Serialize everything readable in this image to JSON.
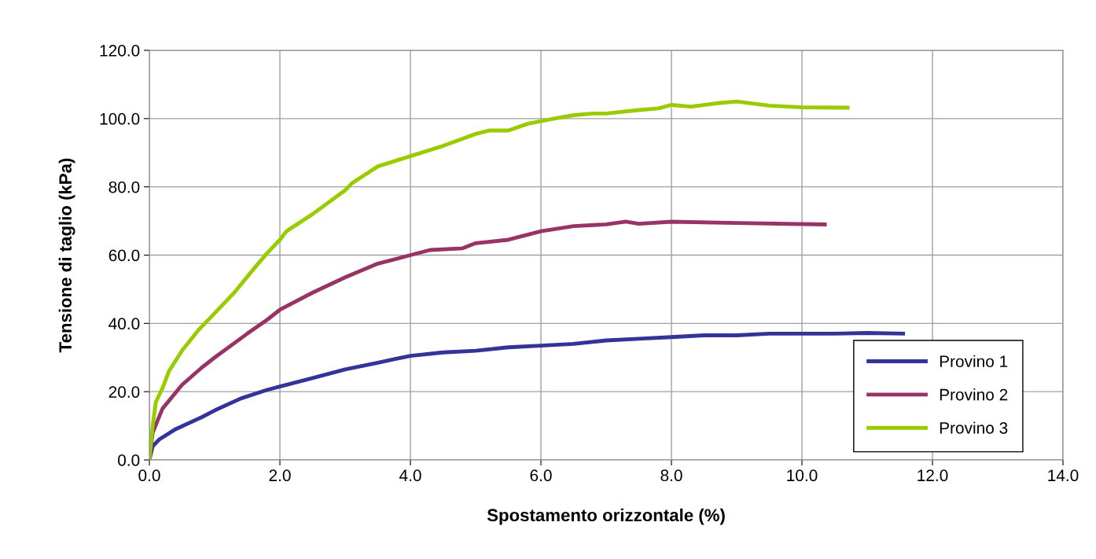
{
  "chart_data": {
    "type": "line",
    "xlabel": "Spostamento orizzontale (%)",
    "ylabel": "Tensione di taglio (kPa)",
    "xlim": [
      0,
      14
    ],
    "ylim": [
      0,
      120
    ],
    "xticks": [
      {
        "value": 0,
        "label": "0.0"
      },
      {
        "value": 2,
        "label": "2.0"
      },
      {
        "value": 4,
        "label": "4.0"
      },
      {
        "value": 6,
        "label": "6.0"
      },
      {
        "value": 8,
        "label": "8.0"
      },
      {
        "value": 10,
        "label": "10.0"
      },
      {
        "value": 12,
        "label": "12.0"
      },
      {
        "value": 14,
        "label": "14.0"
      }
    ],
    "yticks": [
      {
        "value": 0,
        "label": "0.0"
      },
      {
        "value": 20,
        "label": "20.0"
      },
      {
        "value": 40,
        "label": "40.0"
      },
      {
        "value": 60,
        "label": "60.0"
      },
      {
        "value": 80,
        "label": "80.0"
      },
      {
        "value": 100,
        "label": "100.0"
      },
      {
        "value": 120,
        "label": "120.0"
      }
    ],
    "grid": true,
    "legend": "bottom right",
    "marker": "none",
    "line_style": "solid",
    "series": [
      {
        "name": "Provino 1",
        "color": "#333399",
        "x": [
          0,
          0.05,
          0.15,
          0.4,
          0.8,
          1.0,
          1.4,
          1.8,
          2.0,
          2.5,
          3.0,
          3.5,
          4.0,
          4.5,
          5.0,
          5.5,
          6.0,
          6.5,
          7.0,
          7.5,
          8.0,
          8.5,
          9.0,
          9.5,
          10.0,
          10.5,
          11.0,
          11.55
        ],
        "values": [
          0,
          4,
          6,
          9,
          12.5,
          14.5,
          18,
          20.5,
          21.5,
          24,
          26.5,
          28.5,
          30.5,
          31.5,
          32,
          33,
          33.5,
          34,
          35,
          35.5,
          36,
          36.5,
          36.5,
          37,
          37,
          37,
          37.2,
          37
        ]
      },
      {
        "name": "Provino 2",
        "color": "#993366",
        "x": [
          0,
          0.05,
          0.2,
          0.5,
          0.8,
          1.0,
          1.5,
          1.8,
          2.0,
          2.5,
          3.0,
          3.5,
          4.0,
          4.3,
          4.8,
          5.0,
          5.5,
          6.0,
          6.5,
          7.0,
          7.3,
          7.5,
          8.0,
          9.0,
          10.0,
          10.35
        ],
        "values": [
          0,
          8,
          15,
          22,
          27,
          30,
          37,
          41,
          44,
          49,
          53.5,
          57.5,
          60,
          61.5,
          62,
          63.5,
          64.5,
          67,
          68.5,
          69,
          69.8,
          69.2,
          69.8,
          69.4,
          69.1,
          69
        ]
      },
      {
        "name": "Provino 3",
        "color": "#99cc00",
        "x": [
          0,
          0.05,
          0.1,
          0.2,
          0.3,
          0.5,
          0.75,
          1.0,
          1.3,
          1.6,
          1.8,
          2.0,
          2.1,
          2.5,
          3.0,
          3.1,
          3.5,
          4.0,
          4.5,
          5.0,
          5.2,
          5.5,
          5.8,
          6.2,
          6.5,
          6.8,
          7.0,
          7.5,
          7.8,
          8.0,
          8.3,
          8.7,
          9.0,
          9.5,
          10.0,
          10.7
        ],
        "values": [
          0,
          10,
          17,
          21,
          26,
          32,
          38,
          43,
          49,
          56,
          60.5,
          64.5,
          67,
          72,
          79,
          81,
          86,
          89,
          92,
          95.5,
          96.5,
          96.5,
          98.5,
          100,
          101,
          101.5,
          101.5,
          102.5,
          103,
          104,
          103.5,
          104.5,
          105,
          103.8,
          103.3,
          103.2
        ]
      }
    ]
  }
}
